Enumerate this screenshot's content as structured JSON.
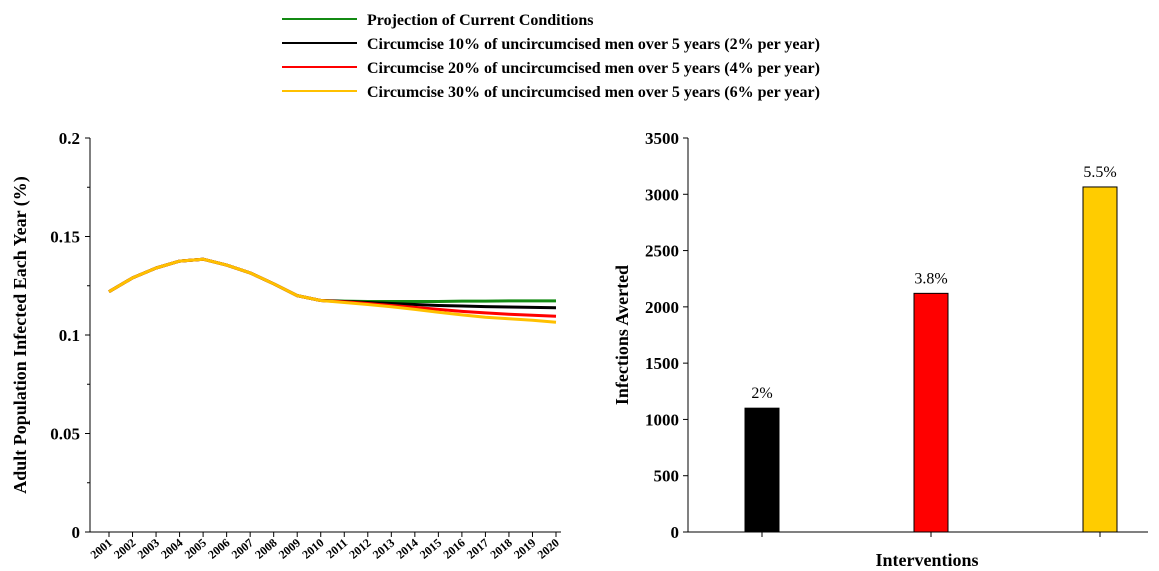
{
  "legend": [
    {
      "label": "Projection of Current Conditions",
      "color": "#138a13"
    },
    {
      "label": "Circumcise 10% of uncircumcised men over 5 years (2% per year)",
      "color": "#000000"
    },
    {
      "label": "Circumcise 20% of uncircumcised men over 5 years (4% per year)",
      "color": "#ff0000"
    },
    {
      "label": "Circumcise 30% of uncircumcised men over 5 years (6% per year)",
      "color": "#ffc000"
    }
  ],
  "chart_data": [
    {
      "type": "line",
      "title": "",
      "ylabel": "Adult Population Infected Each Year (%)",
      "xlabel": "",
      "ylim": [
        0,
        0.2
      ],
      "yticks": [
        "0",
        "0.05",
        "0.1",
        "0.15",
        "0.2"
      ],
      "x": [
        "2001",
        "2002",
        "2003",
        "2004",
        "2005",
        "2006",
        "2007",
        "2008",
        "2009",
        "2010",
        "2011",
        "2012",
        "2013",
        "2014",
        "2015",
        "2016",
        "2017",
        "2018",
        "2019",
        "2020"
      ],
      "legend_position": "top",
      "series": [
        {
          "name": "Projection of Current Conditions",
          "color": "#138a13",
          "values": [
            0.122,
            0.129,
            0.134,
            0.1375,
            0.1385,
            0.1355,
            0.1315,
            0.126,
            0.12,
            0.1175,
            0.1172,
            0.117,
            0.117,
            0.117,
            0.117,
            0.1172,
            0.1172,
            0.1173,
            0.1173,
            0.1173
          ]
        },
        {
          "name": "Circumcise 10% of uncircumcised men over 5 years (2% per year)",
          "color": "#000000",
          "values": [
            0.122,
            0.129,
            0.134,
            0.1375,
            0.1385,
            0.1355,
            0.1315,
            0.126,
            0.12,
            0.1175,
            0.117,
            0.1165,
            0.116,
            0.1155,
            0.115,
            0.1147,
            0.1144,
            0.1142,
            0.114,
            0.1138
          ]
        },
        {
          "name": "Circumcise 20% of uncircumcised men over 5 years (4% per year)",
          "color": "#ff0000",
          "values": [
            0.122,
            0.129,
            0.134,
            0.1375,
            0.1385,
            0.1355,
            0.1315,
            0.126,
            0.12,
            0.1175,
            0.1168,
            0.116,
            0.115,
            0.114,
            0.113,
            0.112,
            0.1112,
            0.1105,
            0.11,
            0.1095
          ]
        },
        {
          "name": "Circumcise 30% of uncircumcised men over 5 years (6% per year)",
          "color": "#ffc000",
          "values": [
            0.122,
            0.129,
            0.134,
            0.1375,
            0.1385,
            0.1355,
            0.1315,
            0.126,
            0.12,
            0.1175,
            0.1165,
            0.1155,
            0.1143,
            0.113,
            0.1115,
            0.1102,
            0.109,
            0.1082,
            0.1075,
            0.1065
          ]
        }
      ]
    },
    {
      "type": "bar",
      "title": "",
      "xlabel": "Interventions",
      "ylabel": "Infections Averted",
      "ylim": [
        0,
        3500
      ],
      "yticks": [
        "0",
        "500",
        "1000",
        "1500",
        "2000",
        "2500",
        "3000",
        "3500"
      ],
      "categories": [
        "",
        "",
        ""
      ],
      "values": [
        1100,
        2120,
        3065
      ],
      "colors": [
        "#000000",
        "#ff0000",
        "#ffcc00"
      ],
      "data_labels": [
        "2%",
        "3.8%",
        "5.5%"
      ]
    }
  ]
}
